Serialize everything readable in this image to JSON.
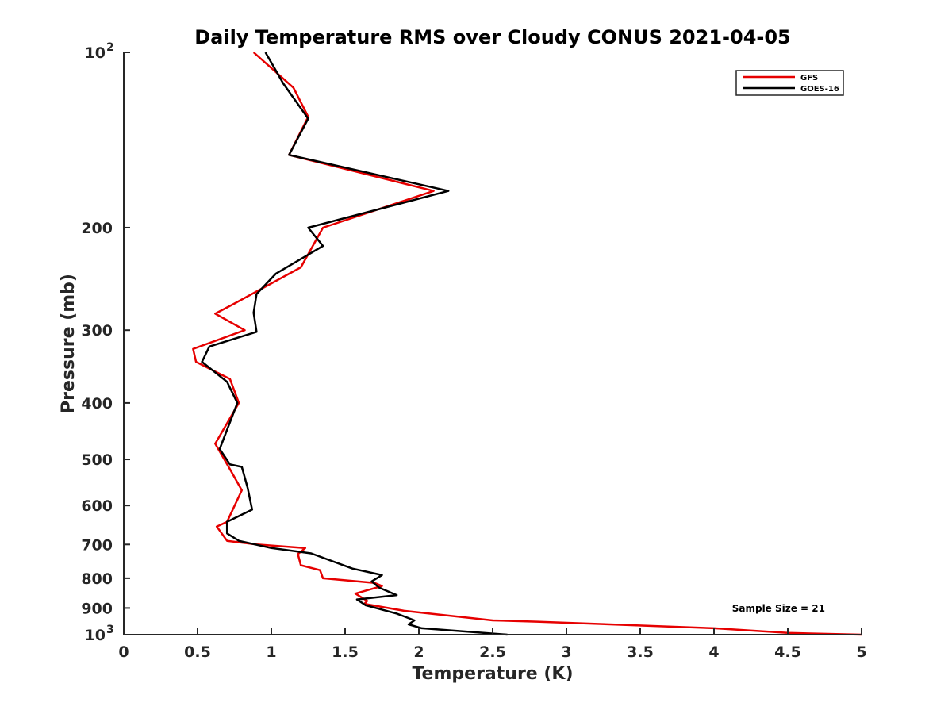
{
  "chart_data": {
    "type": "line",
    "title": "Daily Temperature RMS over Cloudy CONUS 2021-04-05",
    "xlabel": "Temperature (K)",
    "ylabel": "Pressure (mb)",
    "xlim": [
      0,
      5
    ],
    "ylim": [
      100,
      1000
    ],
    "y_scale": "log",
    "y_reversed": true,
    "x_ticks": [
      {
        "value": 0,
        "label": "0"
      },
      {
        "value": 0.5,
        "label": "0.5"
      },
      {
        "value": 1,
        "label": "1"
      },
      {
        "value": 1.5,
        "label": "1.5"
      },
      {
        "value": 2,
        "label": "2"
      },
      {
        "value": 2.5,
        "label": "2.5"
      },
      {
        "value": 3,
        "label": "3"
      },
      {
        "value": 3.5,
        "label": "3.5"
      },
      {
        "value": 4,
        "label": "4"
      },
      {
        "value": 4.5,
        "label": "4.5"
      },
      {
        "value": 5,
        "label": "5"
      }
    ],
    "y_ticks": [
      {
        "value": 100,
        "label": "10",
        "sup": "2"
      },
      {
        "value": 200,
        "label": "200"
      },
      {
        "value": 300,
        "label": "300"
      },
      {
        "value": 400,
        "label": "400"
      },
      {
        "value": 500,
        "label": "500"
      },
      {
        "value": 600,
        "label": "600"
      },
      {
        "value": 700,
        "label": "700"
      },
      {
        "value": 800,
        "label": "800"
      },
      {
        "value": 900,
        "label": "900"
      },
      {
        "value": 1000,
        "label": "10",
        "sup": "3"
      }
    ],
    "grid": false,
    "legend_position": "top-right",
    "annotation": "Sample Size = 21",
    "series": [
      {
        "name": "GFS",
        "color": "#e60000",
        "points": [
          [
            0.88,
            100
          ],
          [
            1.15,
            115
          ],
          [
            1.25,
            129
          ],
          [
            1.12,
            150
          ],
          [
            2.1,
            173
          ],
          [
            1.35,
            200
          ],
          [
            1.2,
            234
          ],
          [
            0.75,
            270
          ],
          [
            0.62,
            281
          ],
          [
            0.82,
            300
          ],
          [
            0.47,
            323
          ],
          [
            0.49,
            340
          ],
          [
            0.72,
            364
          ],
          [
            0.78,
            400
          ],
          [
            0.62,
            470
          ],
          [
            0.72,
            520
          ],
          [
            0.8,
            565
          ],
          [
            0.7,
            640
          ],
          [
            0.63,
            652
          ],
          [
            0.7,
            690
          ],
          [
            0.9,
            700
          ],
          [
            1.23,
            710
          ],
          [
            1.18,
            727
          ],
          [
            1.2,
            760
          ],
          [
            1.33,
            775
          ],
          [
            1.35,
            800
          ],
          [
            1.7,
            815
          ],
          [
            1.75,
            825
          ],
          [
            1.57,
            850
          ],
          [
            1.65,
            875
          ],
          [
            1.63,
            885
          ],
          [
            1.9,
            910
          ],
          [
            2.5,
            945
          ],
          [
            2.8,
            950
          ],
          [
            4,
            975
          ],
          [
            4.5,
            993
          ],
          [
            5,
            1000
          ]
        ]
      },
      {
        "name": "GOES-16",
        "color": "#000000",
        "points": [
          [
            0.96,
            100
          ],
          [
            1.08,
            113
          ],
          [
            1.25,
            130
          ],
          [
            1.12,
            150
          ],
          [
            2.2,
            173
          ],
          [
            1.25,
            200
          ],
          [
            1.35,
            215
          ],
          [
            1.03,
            240
          ],
          [
            0.9,
            260
          ],
          [
            0.88,
            280
          ],
          [
            0.9,
            302
          ],
          [
            0.58,
            320
          ],
          [
            0.53,
            340
          ],
          [
            0.7,
            368
          ],
          [
            0.77,
            400
          ],
          [
            0.65,
            480
          ],
          [
            0.72,
            510
          ],
          [
            0.8,
            515
          ],
          [
            0.84,
            560
          ],
          [
            0.87,
            610
          ],
          [
            0.7,
            640
          ],
          [
            0.7,
            670
          ],
          [
            0.78,
            690
          ],
          [
            1.0,
            710
          ],
          [
            1.27,
            725
          ],
          [
            1.55,
            770
          ],
          [
            1.75,
            790
          ],
          [
            1.68,
            810
          ],
          [
            1.73,
            830
          ],
          [
            1.85,
            855
          ],
          [
            1.58,
            870
          ],
          [
            1.64,
            890
          ],
          [
            1.85,
            920
          ],
          [
            1.97,
            945
          ],
          [
            1.93,
            960
          ],
          [
            2.02,
            975
          ],
          [
            2.6,
            1000
          ]
        ]
      }
    ]
  }
}
